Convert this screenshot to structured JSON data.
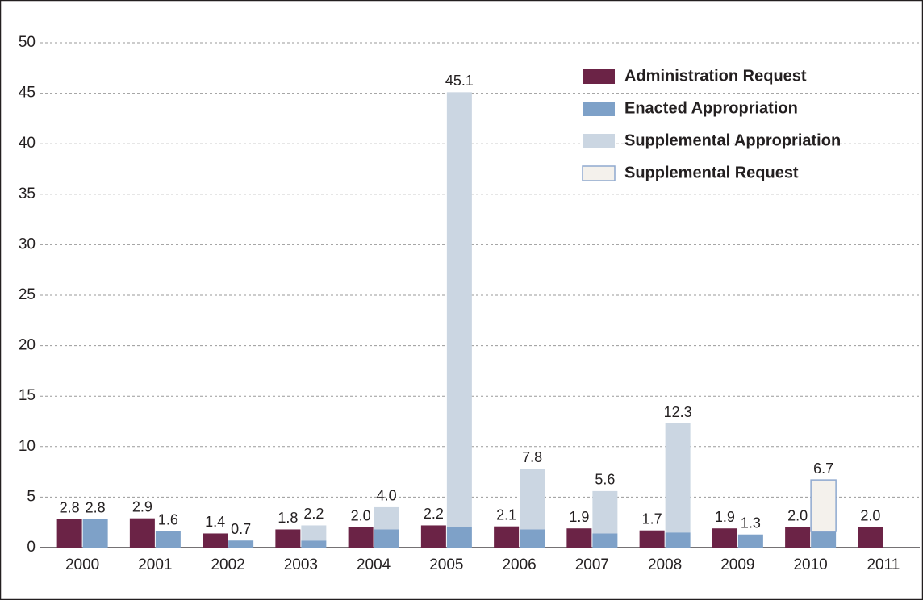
{
  "chart_data": {
    "type": "bar",
    "categories": [
      "2000",
      "2001",
      "2002",
      "2003",
      "2004",
      "2005",
      "2006",
      "2007",
      "2008",
      "2009",
      "2010",
      "2011"
    ],
    "series": [
      {
        "name": "Administration Request",
        "color": "#6b2346",
        "bar_position": 0,
        "values": [
          2.8,
          2.9,
          1.4,
          1.8,
          2.0,
          2.2,
          2.1,
          1.9,
          1.7,
          1.9,
          2.0,
          2.0
        ],
        "value_labels": [
          "2.8",
          "2.9",
          "1.4",
          "1.8",
          "2.0",
          "2.2",
          "2.1",
          "1.9",
          "1.7",
          "1.9",
          "2.0",
          "2.0"
        ]
      },
      {
        "name": "Enacted Appropriation",
        "color": "#7ea1c8",
        "bar_position": 1,
        "values": [
          2.8,
          1.6,
          0.7,
          0.7,
          1.8,
          2.0,
          1.8,
          1.4,
          1.5,
          1.3,
          1.6,
          null
        ]
      },
      {
        "name": "Supplemental Appropriation",
        "color": "#cbd6e2",
        "bar_position": 1,
        "values": [
          null,
          null,
          null,
          1.5,
          2.2,
          43.1,
          6.0,
          4.2,
          10.8,
          null,
          null,
          null
        ]
      },
      {
        "name": "Supplemental Request",
        "color": "#f4f1ec",
        "border": "#8fa9cf",
        "bar_position": 1,
        "values": [
          null,
          null,
          null,
          null,
          null,
          null,
          null,
          null,
          null,
          null,
          5.1,
          null
        ]
      }
    ],
    "total_labels": [
      "2.8",
      "1.6",
      "0.7",
      "2.2",
      "4.0",
      "45.1",
      "7.8",
      "5.6",
      "12.3",
      "1.3",
      "6.7",
      null
    ],
    "ylim": [
      0,
      50
    ],
    "yticks": [
      0,
      5,
      10,
      15,
      20,
      25,
      30,
      35,
      40,
      45,
      50
    ],
    "grid": true,
    "legend": "top-right"
  }
}
